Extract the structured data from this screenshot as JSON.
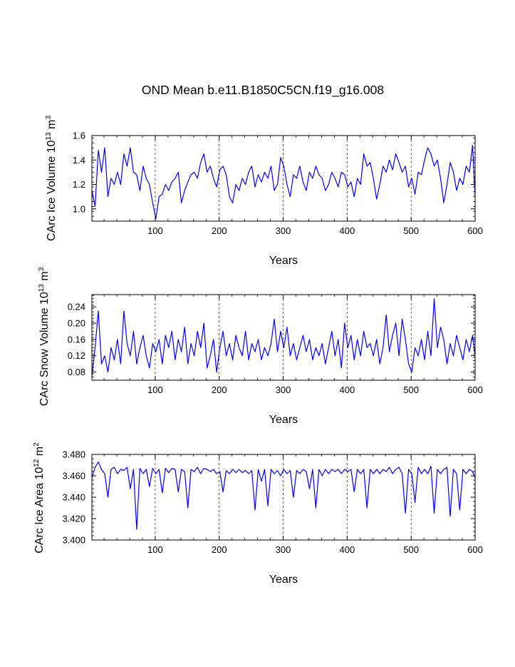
{
  "title": "OND Mean b.e11.B1850C5CN.f19_g16.008",
  "series_color": "#0000ff",
  "chart_data": [
    {
      "type": "line",
      "ylabel": "CArc Ice Volume 10",
      "ylabel_exp": "13",
      "ylabel_unit": " m",
      "ylabel_unit_exp": "3",
      "xlabel": "Years",
      "xlim": [
        1,
        600
      ],
      "ylim": [
        0.9,
        1.6
      ],
      "yticks": [
        1.0,
        1.2,
        1.4,
        1.6
      ],
      "ytick_labels": [
        "1.0",
        "1.2",
        "1.4",
        "1.6"
      ],
      "xticks": [
        100,
        200,
        300,
        400,
        500,
        600
      ],
      "xtick_labels": [
        "100",
        "200",
        "300",
        "400",
        "500",
        "600"
      ],
      "series": [
        {
          "name": "CArc Ice Volume",
          "x_start": 1,
          "x_step": 5,
          "values": [
            1.15,
            1.02,
            1.48,
            1.3,
            1.5,
            1.1,
            1.25,
            1.2,
            1.3,
            1.2,
            1.45,
            1.35,
            1.5,
            1.3,
            1.28,
            1.15,
            1.35,
            1.25,
            1.2,
            1.05,
            0.92,
            1.1,
            1.12,
            1.2,
            1.15,
            1.22,
            1.25,
            1.3,
            1.05,
            1.15,
            1.22,
            1.28,
            1.3,
            1.25,
            1.38,
            1.45,
            1.3,
            1.35,
            1.25,
            1.18,
            1.32,
            1.35,
            1.28,
            1.1,
            1.05,
            1.2,
            1.15,
            1.25,
            1.2,
            1.3,
            1.35,
            1.18,
            1.28,
            1.22,
            1.3,
            1.25,
            1.35,
            1.15,
            1.2,
            1.42,
            1.35,
            1.2,
            1.1,
            1.28,
            1.25,
            1.35,
            1.22,
            1.15,
            1.3,
            1.25,
            1.35,
            1.28,
            1.25,
            1.15,
            1.2,
            1.3,
            1.25,
            1.18,
            1.3,
            1.28,
            1.18,
            1.22,
            1.1,
            1.25,
            1.2,
            1.45,
            1.35,
            1.38,
            1.25,
            1.08,
            1.2,
            1.35,
            1.3,
            1.4,
            1.32,
            1.45,
            1.38,
            1.3,
            1.35,
            1.18,
            1.25,
            1.12,
            1.3,
            1.28,
            1.4,
            1.5,
            1.45,
            1.35,
            1.4,
            1.25,
            1.05,
            1.2,
            1.38,
            1.3,
            1.15,
            1.25,
            1.2,
            1.35,
            1.3,
            1.52,
            1.1
          ]
        }
      ]
    },
    {
      "type": "line",
      "ylabel": "CArc Snow Volume 10",
      "ylabel_exp": "13",
      "ylabel_unit": " m",
      "ylabel_unit_exp": "3",
      "xlabel": "Years",
      "xlim": [
        1,
        600
      ],
      "ylim": [
        0.06,
        0.27
      ],
      "yticks": [
        0.08,
        0.12,
        0.16,
        0.2,
        0.24
      ],
      "ytick_labels": [
        "0.08",
        "0.12",
        "0.16",
        "0.20",
        "0.24"
      ],
      "xticks": [
        100,
        200,
        300,
        400,
        500,
        600
      ],
      "xtick_labels": [
        "100",
        "200",
        "300",
        "400",
        "500",
        "600"
      ],
      "series": [
        {
          "name": "CArc Snow Volume",
          "x_start": 1,
          "x_step": 5,
          "values": [
            0.07,
            0.14,
            0.23,
            0.1,
            0.12,
            0.08,
            0.14,
            0.11,
            0.16,
            0.1,
            0.23,
            0.15,
            0.12,
            0.18,
            0.1,
            0.14,
            0.17,
            0.12,
            0.09,
            0.15,
            0.13,
            0.16,
            0.1,
            0.17,
            0.14,
            0.18,
            0.11,
            0.16,
            0.13,
            0.19,
            0.1,
            0.15,
            0.12,
            0.18,
            0.14,
            0.2,
            0.09,
            0.12,
            0.16,
            0.08,
            0.14,
            0.18,
            0.12,
            0.15,
            0.11,
            0.17,
            0.14,
            0.12,
            0.18,
            0.11,
            0.15,
            0.13,
            0.16,
            0.11,
            0.14,
            0.12,
            0.15,
            0.21,
            0.13,
            0.18,
            0.14,
            0.19,
            0.12,
            0.15,
            0.11,
            0.14,
            0.17,
            0.13,
            0.16,
            0.11,
            0.14,
            0.12,
            0.15,
            0.1,
            0.14,
            0.18,
            0.12,
            0.16,
            0.09,
            0.2,
            0.14,
            0.17,
            0.11,
            0.16,
            0.12,
            0.18,
            0.14,
            0.15,
            0.12,
            0.16,
            0.1,
            0.14,
            0.22,
            0.13,
            0.17,
            0.2,
            0.12,
            0.21,
            0.16,
            0.1,
            0.08,
            0.14,
            0.12,
            0.16,
            0.11,
            0.18,
            0.12,
            0.26,
            0.14,
            0.19,
            0.16,
            0.1,
            0.15,
            0.12,
            0.17,
            0.14,
            0.11,
            0.16,
            0.13,
            0.17,
            0.12
          ]
        }
      ]
    },
    {
      "type": "line",
      "ylabel": "CArc Ice Area 10",
      "ylabel_exp": "12",
      "ylabel_unit": " m",
      "ylabel_unit_exp": "2",
      "xlabel": "Years",
      "xlim": [
        1,
        600
      ],
      "ylim": [
        3.4,
        3.48
      ],
      "yticks": [
        3.4,
        3.42,
        3.44,
        3.46,
        3.48
      ],
      "ytick_labels": [
        "3.400",
        "3.420",
        "3.440",
        "3.460",
        "3.480"
      ],
      "xticks": [
        100,
        200,
        300,
        400,
        500,
        600
      ],
      "xtick_labels": [
        "100",
        "200",
        "300",
        "400",
        "500",
        "600"
      ],
      "series": [
        {
          "name": "CArc Ice Area",
          "x_start": 1,
          "x_step": 5,
          "values": [
            3.458,
            3.468,
            3.473,
            3.466,
            3.462,
            3.44,
            3.466,
            3.468,
            3.462,
            3.466,
            3.465,
            3.468,
            3.448,
            3.466,
            3.41,
            3.467,
            3.462,
            3.466,
            3.45,
            3.467,
            3.462,
            3.466,
            3.444,
            3.467,
            3.463,
            3.467,
            3.466,
            3.445,
            3.466,
            3.464,
            3.43,
            3.466,
            3.464,
            3.468,
            3.462,
            3.467,
            3.466,
            3.464,
            3.466,
            3.462,
            3.464,
            3.445,
            3.465,
            3.462,
            3.466,
            3.463,
            3.466,
            3.463,
            3.465,
            3.462,
            3.465,
            3.428,
            3.466,
            3.455,
            3.466,
            3.432,
            3.466,
            3.462,
            3.465,
            3.46,
            3.466,
            3.462,
            3.465,
            3.44,
            3.465,
            3.462,
            3.466,
            3.464,
            3.448,
            3.466,
            3.43,
            3.466,
            3.46,
            3.466,
            3.462,
            3.466,
            3.464,
            3.466,
            3.462,
            3.466,
            3.464,
            3.466,
            3.445,
            3.466,
            3.462,
            3.466,
            3.43,
            3.466,
            3.462,
            3.466,
            3.462,
            3.466,
            3.464,
            3.468,
            3.462,
            3.466,
            3.468,
            3.462,
            3.425,
            3.466,
            3.462,
            3.435,
            3.468,
            3.462,
            3.466,
            3.462,
            3.469,
            3.425,
            3.466,
            3.462,
            3.466,
            3.468,
            3.422,
            3.466,
            3.462,
            3.428,
            3.466,
            3.462,
            3.466,
            3.464,
            3.458
          ]
        }
      ]
    }
  ]
}
